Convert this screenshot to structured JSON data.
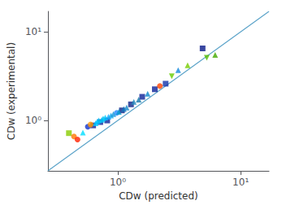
{
  "chart_data": {
    "type": "scatter",
    "xlabel": "CDw (predicted)",
    "ylabel": "CDw (experimental)",
    "log": true,
    "xlim": [
      0.27,
      17
    ],
    "ylim": [
      0.27,
      17
    ],
    "xticks": [
      {
        "value": 1,
        "label": "10⁰"
      },
      {
        "value": 10,
        "label": "10¹"
      }
    ],
    "yticks": [
      {
        "value": 1,
        "label": "10⁰"
      },
      {
        "value": 10,
        "label": "10¹"
      }
    ],
    "grid": false,
    "series": [
      {
        "type": "line",
        "color": "#5ba3c9",
        "x": [
          0.27,
          17
        ],
        "values": [
          0.27,
          17
        ]
      },
      {
        "type": "scatter",
        "marker": "square",
        "x": [
          0.4,
          0.63,
          0.72,
          0.82,
          1.08,
          1.28,
          1.58,
          2.0,
          2.45,
          4.9
        ],
        "values": [
          0.72,
          0.88,
          0.96,
          1.0,
          1.3,
          1.52,
          1.85,
          2.25,
          2.6,
          6.5
        ],
        "colors": [
          "#88cc00",
          "#112299",
          "#0a1f99",
          "#0d2299",
          "#0d2288",
          "#0d2288",
          "#0d2299",
          "#0d2299",
          "#1133aa",
          "#081888"
        ]
      },
      {
        "type": "scatter",
        "marker": "circle",
        "x": [
          0.44,
          0.47,
          0.57,
          0.6,
          0.98,
          2.2
        ],
        "values": [
          0.66,
          0.61,
          0.85,
          0.9,
          1.22,
          2.45
        ],
        "colors": [
          "#ff7700",
          "#ff2200",
          "#1133cc",
          "#ff9900",
          "#2288ff",
          "#ff4400"
        ]
      },
      {
        "type": "scatter",
        "marker": "triangle-up",
        "x": [
          0.52,
          0.66,
          0.68,
          0.7,
          0.74,
          0.76,
          0.79,
          0.84,
          0.88,
          0.92,
          1.02,
          1.12,
          1.18,
          1.35,
          1.48,
          1.75,
          3.1,
          3.7,
          6.2
        ],
        "values": [
          0.73,
          0.93,
          0.97,
          1.0,
          1.02,
          1.05,
          1.08,
          1.1,
          1.14,
          1.18,
          1.25,
          1.35,
          1.4,
          1.62,
          1.72,
          2.0,
          3.7,
          4.2,
          5.5
        ],
        "colors": [
          "#00ddff",
          "#00ccff",
          "#00bbff",
          "#00ccff",
          "#00ccff",
          "#00bbee",
          "#00ccff",
          "#11aaff",
          "#11aaee",
          "#1199dd",
          "#0099cc",
          "#1177bb",
          "#1188cc",
          "#2288bb",
          "#1177aa",
          "#0d88cc",
          "#1188dd",
          "#77cc00",
          "#44aa00"
        ]
      },
      {
        "type": "scatter",
        "marker": "triangle-down",
        "x": [
          2.75,
          5.3
        ],
        "values": [
          3.15,
          5.1
        ],
        "colors": [
          "#66cc00",
          "#55bb00"
        ]
      }
    ]
  }
}
